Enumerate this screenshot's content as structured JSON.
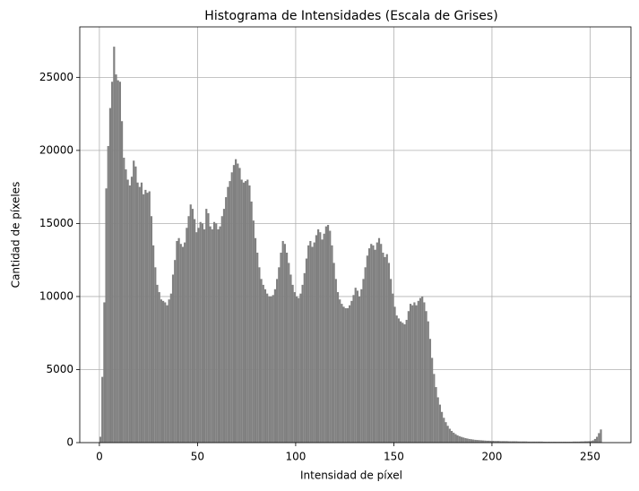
{
  "chart_data": {
    "type": "histogram",
    "title": "Histograma de Intensidades (Escala de Grises)",
    "x_label": "Intensidad de píxel",
    "y_label": "Cantidad de píxeles",
    "color": "#808080",
    "grid": true,
    "xlim": [
      -10,
      270.8
    ],
    "ylim": [
      0,
      28455
    ],
    "xticks": [
      0,
      50,
      100,
      150,
      200,
      250
    ],
    "yticks": [
      0,
      5000,
      10000,
      15000,
      20000,
      25000
    ],
    "bins": [
      0,
      1,
      2,
      3,
      4,
      5,
      6,
      7,
      8,
      9,
      10,
      11,
      12,
      13,
      14,
      15,
      16,
      17,
      18,
      19,
      20,
      21,
      22,
      23,
      24,
      25,
      26,
      27,
      28,
      29,
      30,
      31,
      32,
      33,
      34,
      35,
      36,
      37,
      38,
      39,
      40,
      41,
      42,
      43,
      44,
      45,
      46,
      47,
      48,
      49,
      50,
      51,
      52,
      53,
      54,
      55,
      56,
      57,
      58,
      59,
      60,
      61,
      62,
      63,
      64,
      65,
      66,
      67,
      68,
      69,
      70,
      71,
      72,
      73,
      74,
      75,
      76,
      77,
      78,
      79,
      80,
      81,
      82,
      83,
      84,
      85,
      86,
      87,
      88,
      89,
      90,
      91,
      92,
      93,
      94,
      95,
      96,
      97,
      98,
      99,
      100,
      101,
      102,
      103,
      104,
      105,
      106,
      107,
      108,
      109,
      110,
      111,
      112,
      113,
      114,
      115,
      116,
      117,
      118,
      119,
      120,
      121,
      122,
      123,
      124,
      125,
      126,
      127,
      128,
      129,
      130,
      131,
      132,
      133,
      134,
      135,
      136,
      137,
      138,
      139,
      140,
      141,
      142,
      143,
      144,
      145,
      146,
      147,
      148,
      149,
      150,
      151,
      152,
      153,
      154,
      155,
      156,
      157,
      158,
      159,
      160,
      161,
      162,
      163,
      164,
      165,
      166,
      167,
      168,
      169,
      170,
      171,
      172,
      173,
      174,
      175,
      176,
      177,
      178,
      179,
      180,
      181,
      182,
      183,
      184,
      185,
      186,
      187,
      188,
      189,
      190,
      191,
      192,
      193,
      194,
      195,
      196,
      197,
      198,
      199,
      200,
      201,
      202,
      203,
      204,
      205,
      206,
      207,
      208,
      209,
      210,
      211,
      212,
      213,
      214,
      215,
      216,
      217,
      218,
      219,
      220,
      221,
      222,
      223,
      224,
      225,
      226,
      227,
      228,
      229,
      230,
      231,
      232,
      233,
      234,
      235,
      236,
      237,
      238,
      239,
      240,
      241,
      242,
      243,
      244,
      245,
      246,
      247,
      248,
      249,
      250,
      251,
      252,
      253,
      254,
      255,
      256
    ],
    "counts": [
      400,
      4500,
      9600,
      17400,
      20300,
      22900,
      24700,
      27100,
      25200,
      24800,
      24700,
      22000,
      19500,
      18700,
      18000,
      17600,
      18200,
      19300,
      18900,
      17800,
      17500,
      17800,
      17000,
      17300,
      17100,
      17200,
      15500,
      13500,
      12000,
      10800,
      10300,
      9800,
      9700,
      9600,
      9400,
      9800,
      10200,
      11500,
      12500,
      13800,
      14000,
      13600,
      13400,
      13700,
      14700,
      15500,
      16300,
      16000,
      15300,
      14400,
      14700,
      15100,
      15000,
      14600,
      16000,
      15700,
      14800,
      14600,
      15100,
      15000,
      14600,
      14800,
      15500,
      16000,
      16800,
      17500,
      17900,
      18500,
      19000,
      19400,
      19100,
      18800,
      18000,
      17800,
      17900,
      18000,
      17600,
      16500,
      15200,
      14000,
      13000,
      12000,
      11200,
      10800,
      10500,
      10200,
      10000,
      10000,
      10100,
      10500,
      11200,
      12000,
      13000,
      13800,
      13600,
      13000,
      12300,
      11500,
      10800,
      10300,
      10000,
      9900,
      10200,
      10800,
      11600,
      12600,
      13500,
      13800,
      13400,
      13700,
      14200,
      14600,
      14400,
      13900,
      14300,
      14800,
      14900,
      14500,
      13500,
      12300,
      11200,
      10300,
      9800,
      9500,
      9300,
      9200,
      9200,
      9400,
      9700,
      10100,
      10600,
      10400,
      10000,
      10500,
      11200,
      12000,
      12800,
      13300,
      13600,
      13500,
      13200,
      13700,
      14000,
      13600,
      13000,
      12700,
      12900,
      12300,
      11200,
      10200,
      9300,
      8700,
      8500,
      8300,
      8200,
      8100,
      8400,
      9000,
      9500,
      9400,
      9600,
      9400,
      9700,
      9900,
      10000,
      9600,
      9000,
      8300,
      7100,
      5800,
      4700,
      3800,
      3100,
      2600,
      2100,
      1700,
      1400,
      1150,
      950,
      800,
      680,
      580,
      500,
      440,
      390,
      350,
      310,
      280,
      250,
      230,
      210,
      190,
      180,
      170,
      160,
      150,
      140,
      130,
      130,
      120,
      120,
      110,
      110,
      110,
      100,
      100,
      100,
      100,
      90,
      90,
      90,
      90,
      90,
      80,
      80,
      80,
      80,
      80,
      70,
      70,
      70,
      70,
      70,
      70,
      70,
      70,
      60,
      60,
      60,
      60,
      60,
      60,
      60,
      60,
      60,
      60,
      60,
      60,
      60,
      60,
      60,
      70,
      70,
      70,
      70,
      80,
      80,
      90,
      90,
      100,
      110,
      150,
      250,
      400,
      650,
      900
    ]
  }
}
